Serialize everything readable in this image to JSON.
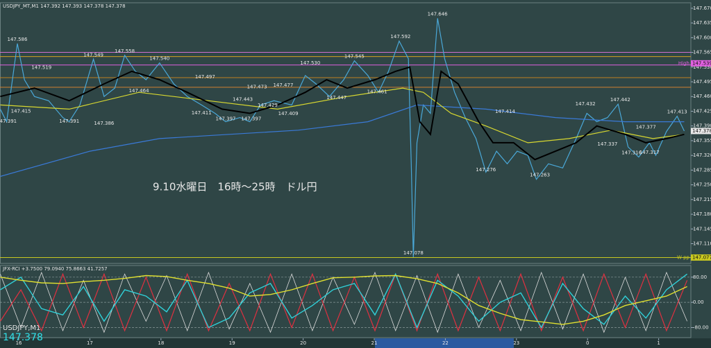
{
  "chart_data": [
    {
      "type": "line",
      "title": "USDJPY_MT,M1  147.392 147.393 147.378 147.378",
      "annotation": "9.10水曜日　16時～25時　ドル円",
      "symbol": "USDJPY,M1",
      "price": 147.378,
      "last": 147.378,
      "xlim": [
        15.736,
        25.453
      ],
      "ylim": [
        147.063,
        147.683
      ],
      "xticks": [
        16,
        17,
        18,
        19,
        20,
        21,
        22,
        23,
        {
          "value": 24,
          "label": "0"
        },
        {
          "value": 25,
          "label": "1"
        }
      ],
      "yticks": [
        {
          "value": 147.67,
          "label": "147.670"
        },
        147.635,
        {
          "value": 147.6,
          "label": "147.600"
        },
        147.565,
        {
          "value": 147.53,
          "label": "147.530"
        },
        147.495,
        {
          "value": 147.46,
          "label": "147.460"
        },
        147.425,
        {
          "value": 147.39,
          "label": "147.390"
        },
        147.355,
        {
          "value": 147.32,
          "label": "147.320"
        },
        147.285,
        {
          "value": 147.25,
          "label": "147.250"
        },
        147.215,
        {
          "value": 147.18,
          "label": "147.180"
        },
        147.145,
        {
          "value": 147.11,
          "label": "147.110"
        }
      ],
      "grid": false,
      "levels": [
        {
          "value": 147.565,
          "color": "#d070d0"
        },
        {
          "value": 147.555,
          "color": "#d4a020"
        },
        {
          "value": 147.535,
          "color": "#e060e0"
        },
        {
          "value": 147.505,
          "color": "#c08020"
        },
        {
          "value": 147.482,
          "color": "#d08030"
        },
        {
          "value": 147.077,
          "color": "#c8c820"
        }
      ],
      "series": [
        {
          "color": "#4aa8d8",
          "width": 1.2,
          "x": [
            15.74,
            15.83,
            15.98,
            16.08,
            16.22,
            16.42,
            16.62,
            16.71,
            16.86,
            17.0,
            17.05,
            17.2,
            17.35,
            17.49,
            17.64,
            17.79,
            17.98,
            18.18,
            18.37,
            18.57,
            18.76,
            18.91,
            19.11,
            19.25,
            19.4,
            19.59,
            19.84,
            20.03,
            20.18,
            20.37,
            20.57,
            20.72,
            20.91,
            21.06,
            21.2,
            21.35,
            21.48,
            21.52,
            21.55,
            21.6,
            21.69,
            21.79,
            21.89,
            21.99,
            22.13,
            22.28,
            22.43,
            22.57,
            22.72,
            22.87,
            23.01,
            23.16,
            23.28,
            23.45,
            23.65,
            23.84,
            23.99,
            24.13,
            24.28,
            24.43,
            24.57,
            24.72,
            24.87,
            24.96,
            25.11,
            25.26,
            25.36
          ],
          "values": [
            147.43,
            147.4,
            147.586,
            147.5,
            147.46,
            147.45,
            147.41,
            147.4,
            147.44,
            147.52,
            147.549,
            147.46,
            147.48,
            147.558,
            147.52,
            147.5,
            147.54,
            147.49,
            147.46,
            147.44,
            147.42,
            147.4,
            147.41,
            147.4,
            147.44,
            147.45,
            147.44,
            147.51,
            147.49,
            147.46,
            147.5,
            147.545,
            147.51,
            147.47,
            147.52,
            147.592,
            147.55,
            147.3,
            147.078,
            147.35,
            147.44,
            147.42,
            147.646,
            147.55,
            147.47,
            147.41,
            147.36,
            147.28,
            147.33,
            147.3,
            147.33,
            147.32,
            147.263,
            147.3,
            147.29,
            147.36,
            147.42,
            147.4,
            147.41,
            147.442,
            147.34,
            147.316,
            147.35,
            147.32,
            147.377,
            147.413,
            147.378
          ]
        },
        {
          "color": "#3a7ad8",
          "width": 1.2,
          "x": [
            15.74,
            17.0,
            17.98,
            18.96,
            19.93,
            20.91,
            21.6,
            22.57,
            23.55,
            24.53,
            25.36
          ],
          "values": [
            147.27,
            147.33,
            147.36,
            147.37,
            147.38,
            147.4,
            147.44,
            147.43,
            147.41,
            147.4,
            147.4
          ]
        },
        {
          "color": "#d8d830",
          "width": 1.2,
          "x": [
            15.74,
            16.71,
            17.69,
            18.67,
            19.64,
            20.62,
            21.4,
            21.69,
            22.08,
            22.57,
            23.16,
            23.74,
            24.33,
            24.92,
            25.36
          ],
          "values": [
            147.44,
            147.43,
            147.47,
            147.45,
            147.43,
            147.46,
            147.48,
            147.47,
            147.42,
            147.39,
            147.35,
            147.36,
            147.38,
            147.36,
            147.37
          ]
        },
        {
          "color": "#000000",
          "width": 2,
          "x": [
            15.74,
            16.22,
            16.71,
            17.2,
            17.59,
            17.98,
            18.37,
            18.86,
            19.25,
            19.64,
            20.03,
            20.33,
            20.62,
            21.01,
            21.3,
            21.5,
            21.64,
            21.79,
            21.94,
            22.18,
            22.47,
            22.67,
            22.96,
            23.26,
            23.55,
            23.84,
            24.13,
            24.33,
            24.53,
            24.82,
            25.11,
            25.36
          ],
          "values": [
            147.46,
            147.48,
            147.45,
            147.49,
            147.52,
            147.5,
            147.47,
            147.43,
            147.42,
            147.44,
            147.47,
            147.5,
            147.48,
            147.5,
            147.52,
            147.53,
            147.4,
            147.37,
            147.52,
            147.49,
            147.4,
            147.35,
            147.35,
            147.31,
            147.33,
            147.35,
            147.39,
            147.38,
            147.37,
            147.35,
            147.36,
            147.37
          ]
        }
      ],
      "price_labels": [
        {
          "x": 15.98,
          "value": 147.586
        },
        {
          "x": 16.32,
          "value": 147.519
        },
        {
          "x": 16.03,
          "value": 147.415
        },
        {
          "x": 15.83,
          "value": 147.391
        },
        {
          "x": 17.05,
          "value": 147.549
        },
        {
          "x": 16.71,
          "value": 147.391
        },
        {
          "x": 17.49,
          "value": 147.558
        },
        {
          "x": 17.2,
          "value": 147.386
        },
        {
          "x": 17.98,
          "value": 147.54,
          "label": "147.540"
        },
        {
          "x": 17.69,
          "value": 147.464
        },
        {
          "x": 18.62,
          "value": 147.497
        },
        {
          "x": 18.57,
          "value": 147.411
        },
        {
          "x": 18.91,
          "value": 147.397
        },
        {
          "x": 19.35,
          "value": 147.473
        },
        {
          "x": 19.15,
          "value": 147.443
        },
        {
          "x": 19.27,
          "value": 147.397
        },
        {
          "x": 19.72,
          "value": 147.477
        },
        {
          "x": 19.5,
          "value": 147.429
        },
        {
          "x": 19.79,
          "value": 147.409
        },
        {
          "x": 20.1,
          "value": 147.53,
          "label": "147.530"
        },
        {
          "x": 20.47,
          "value": 147.447
        },
        {
          "x": 20.72,
          "value": 147.545
        },
        {
          "x": 21.04,
          "value": 147.461
        },
        {
          "x": 21.37,
          "value": 147.592
        },
        {
          "x": 21.89,
          "value": 147.646
        },
        {
          "x": 21.55,
          "value": 147.078
        },
        {
          "x": 22.84,
          "value": 147.414
        },
        {
          "x": 22.57,
          "value": 147.276
        },
        {
          "x": 23.33,
          "value": 147.263
        },
        {
          "x": 23.97,
          "value": 147.432
        },
        {
          "x": 24.46,
          "value": 147.442
        },
        {
          "x": 24.82,
          "value": 147.377
        },
        {
          "x": 24.28,
          "value": 147.337
        },
        {
          "x": 24.62,
          "value": 147.316
        },
        {
          "x": 24.87,
          "value": 147.317
        },
        {
          "x": 25.26,
          "value": 147.413
        }
      ],
      "markers": [
        {
          "label": "High",
          "value": 147.539,
          "color": "#e060e0"
        },
        {
          "label": "W pp",
          "value": 147.077,
          "color": "#c8c820"
        }
      ]
    },
    {
      "type": "line",
      "title": "JFX-RCI +3.7500 79.0940 75.8663 41.7257",
      "xlim": [
        15.736,
        25.453
      ],
      "ylim": [
        -112,
        117
      ],
      "yticks": [
        {
          "value": 80,
          "label": "80.00"
        },
        {
          "value": 0,
          "label": "0.00"
        },
        {
          "value": -80,
          "label": "-80.00"
        }
      ],
      "grid": true,
      "x": [
        15.74,
        16.03,
        16.32,
        16.62,
        16.91,
        17.2,
        17.49,
        17.79,
        18.08,
        18.37,
        18.67,
        18.96,
        19.25,
        19.54,
        19.84,
        20.13,
        20.42,
        20.72,
        21.01,
        21.3,
        21.6,
        21.89,
        22.18,
        22.47,
        22.77,
        23.06,
        23.35,
        23.65,
        23.94,
        24.23,
        24.53,
        24.82,
        25.11,
        25.4
      ],
      "series": [
        {
          "color": "#dddddd",
          "width": 0.8,
          "values": [
            90,
            -80,
            95,
            -90,
            70,
            -95,
            90,
            -60,
            85,
            -90,
            95,
            -85,
            60,
            -95,
            90,
            -90,
            80,
            -70,
            95,
            -90,
            85,
            -95,
            90,
            -80,
            70,
            -90,
            95,
            -85,
            90,
            -95,
            80,
            -90,
            95,
            -60
          ]
        },
        {
          "color": "#e03040",
          "width": 1.2,
          "values": [
            -60,
            40,
            -90,
            90,
            -80,
            90,
            -90,
            80,
            -90,
            90,
            -90,
            60,
            -90,
            90,
            -80,
            90,
            -90,
            80,
            -90,
            90,
            -90,
            90,
            -90,
            80,
            -90,
            90,
            -90,
            80,
            -90,
            90,
            -80,
            90,
            -90,
            70
          ]
        },
        {
          "color": "#30d0d8",
          "width": 1.4,
          "values": [
            40,
            80,
            -20,
            -40,
            50,
            -60,
            40,
            20,
            -30,
            70,
            -80,
            -50,
            30,
            60,
            -50,
            -10,
            40,
            60,
            -40,
            90,
            -80,
            70,
            20,
            -60,
            0,
            30,
            -80,
            60,
            -20,
            -70,
            20,
            -50,
            40,
            90
          ]
        },
        {
          "color": "#e0e030",
          "width": 1.4,
          "values": [
            80,
            70,
            62,
            60,
            66,
            70,
            76,
            85,
            82,
            70,
            60,
            45,
            20,
            25,
            40,
            60,
            78,
            80,
            84,
            85,
            75,
            60,
            30,
            -10,
            -35,
            -55,
            -62,
            -70,
            -60,
            -40,
            -10,
            5,
            20,
            50
          ]
        }
      ]
    }
  ]
}
